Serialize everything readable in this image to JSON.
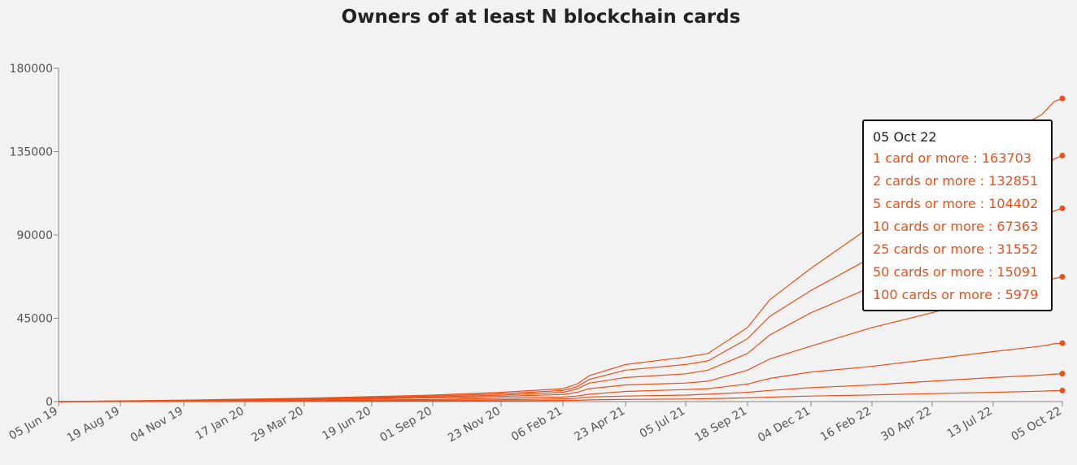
{
  "chart_data": {
    "type": "line",
    "title": "Owners of at least N blockchain cards",
    "xlabel": "",
    "ylabel": "",
    "ylim": [
      0,
      180000
    ],
    "y_ticks": [
      0,
      45000,
      90000,
      135000,
      180000
    ],
    "x_ticks": [
      "05 Jun 19",
      "19 Aug 19",
      "04 Nov 19",
      "17 Jan 20",
      "29 Mar 20",
      "19 Jun 20",
      "01 Sep 20",
      "23 Nov 20",
      "06 Feb 21",
      "23 Apr 21",
      "05 Jul 21",
      "18 Sep 21",
      "04 Dec 21",
      "16 Feb 22",
      "30 Apr 22",
      "13 Jul 22",
      "05 Oct 22"
    ],
    "grid": false,
    "line_color": "#e8501a",
    "x": [
      "05 Jun 19",
      "04 Nov 19",
      "29 Mar 20",
      "01 Sep 20",
      "23 Nov 20",
      "06 Feb 21",
      "23 Feb 21",
      "10 Mar 21",
      "23 Apr 21",
      "05 Jul 21",
      "01 Aug 21",
      "18 Sep 21",
      "15 Oct 21",
      "04 Dec 21",
      "16 Feb 22",
      "30 Apr 22",
      "13 Jul 22",
      "10 Sep 22",
      "25 Sep 22",
      "05 Oct 22"
    ],
    "series": [
      {
        "name": "1 card or more",
        "values": [
          0,
          800,
          1800,
          3500,
          5000,
          7000,
          9500,
          14000,
          20000,
          24000,
          26000,
          40000,
          55000,
          72000,
          95000,
          118000,
          140000,
          155000,
          162000,
          163703
        ]
      },
      {
        "name": "2 cards or more",
        "values": [
          0,
          600,
          1400,
          3000,
          4200,
          6000,
          8000,
          12000,
          17000,
          20000,
          22000,
          34000,
          46000,
          60000,
          78000,
          95000,
          113000,
          125000,
          131000,
          132851
        ]
      },
      {
        "name": "5 cards or more",
        "values": [
          0,
          400,
          1000,
          2500,
          3500,
          5000,
          6800,
          10000,
          13000,
          15000,
          17000,
          26000,
          36000,
          48000,
          62000,
          76000,
          90000,
          99000,
          103000,
          104402
        ]
      },
      {
        "name": "10 cards or more",
        "values": [
          0,
          300,
          800,
          2000,
          2800,
          3800,
          5000,
          7000,
          9000,
          10000,
          11000,
          17000,
          23000,
          30000,
          40000,
          48000,
          57000,
          63000,
          66500,
          67363
        ]
      },
      {
        "name": "25 cards or more",
        "values": [
          0,
          200,
          500,
          1200,
          1800,
          2500,
          3000,
          4000,
          5500,
          6500,
          7000,
          9500,
          12500,
          16000,
          19000,
          23000,
          27000,
          30000,
          31200,
          31552
        ]
      },
      {
        "name": "50 cards or more",
        "values": [
          0,
          100,
          300,
          700,
          1000,
          1500,
          1800,
          2500,
          3000,
          3500,
          4000,
          5000,
          6000,
          7500,
          9000,
          11000,
          13000,
          14300,
          14900,
          15091
        ]
      },
      {
        "name": "100 cards or more",
        "values": [
          0,
          50,
          150,
          300,
          450,
          600,
          700,
          900,
          1200,
          1400,
          1600,
          2000,
          2400,
          3000,
          3600,
          4300,
          5000,
          5600,
          5900,
          5979
        ]
      }
    ]
  },
  "tooltip": {
    "date": "05 Oct 22",
    "rows": [
      "1 card or more : 163703",
      "2 cards or more : 132851",
      "5 cards or more : 104402",
      "10 cards or more : 67363",
      "25 cards or more : 31552",
      "50 cards or more : 15091",
      "100 cards or more : 5979"
    ]
  }
}
